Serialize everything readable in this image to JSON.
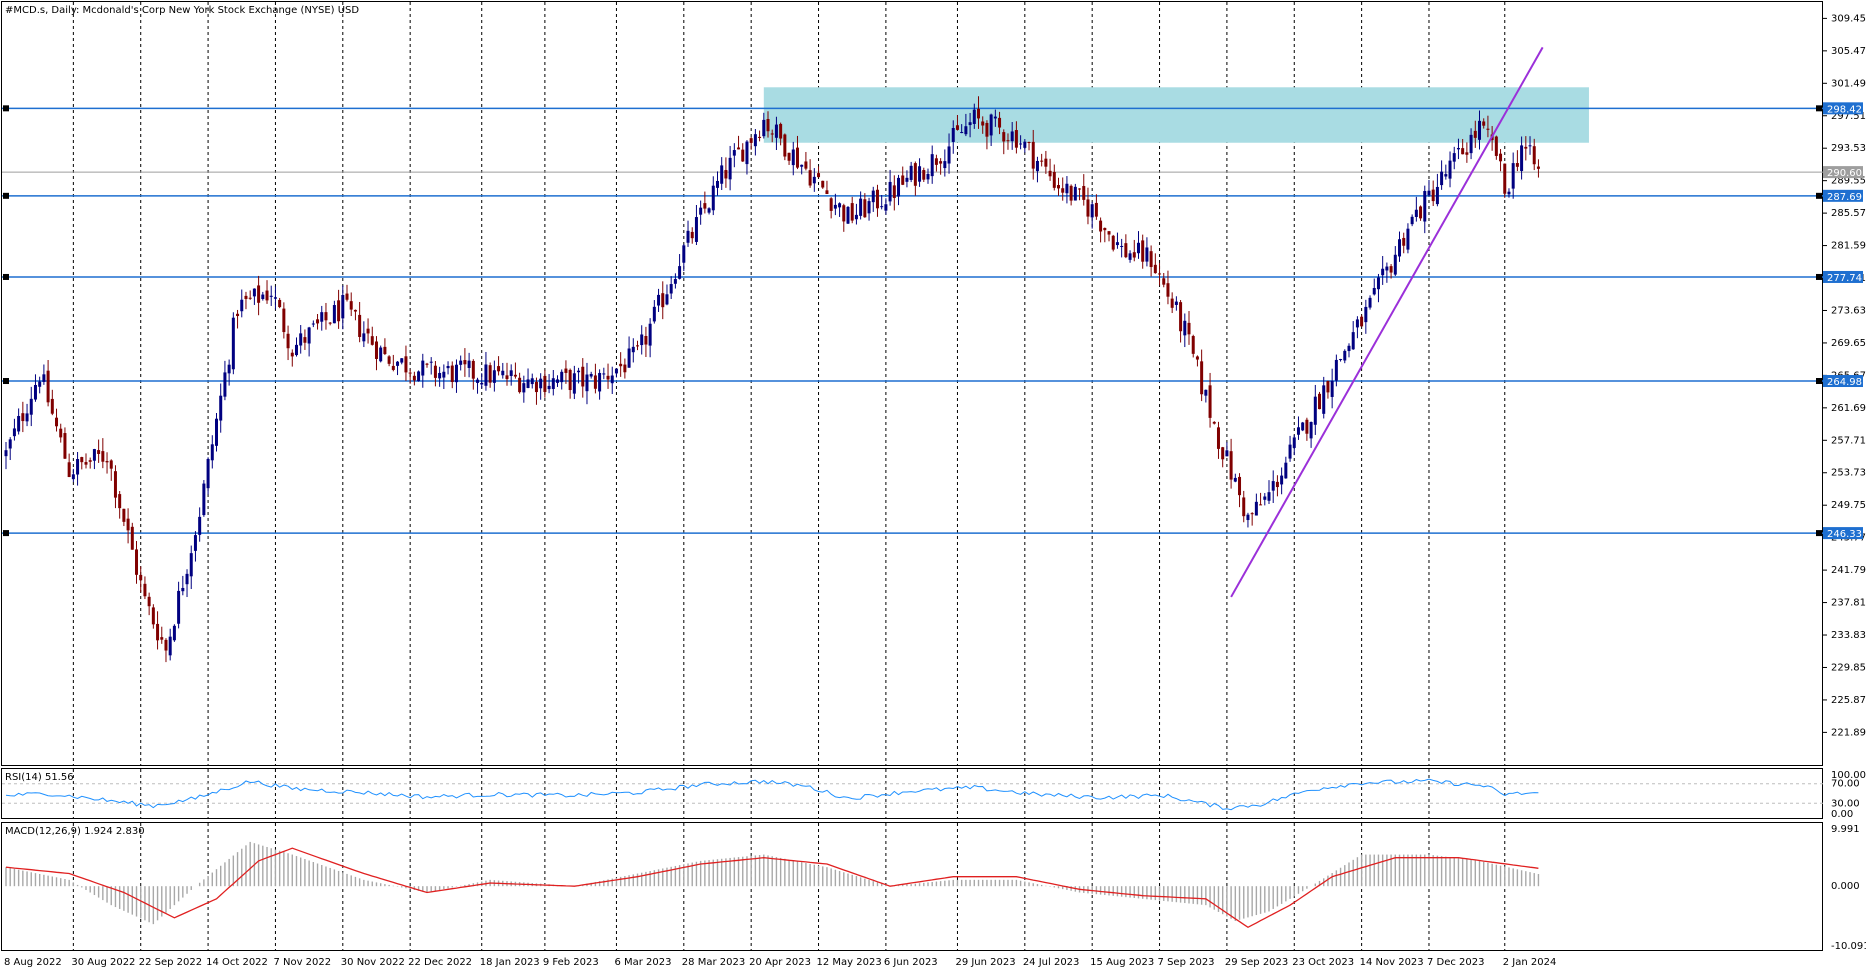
{
  "title": "#MCD.s, Daily:  Mcdonald's Corp New York Stock Exchange (NYSE) USD",
  "colors": {
    "background": "#ffffff",
    "candle_up": "#000080",
    "candle_down": "#800000",
    "level_line": "#1e6fd0",
    "level_label_bg": "#1e6fd0",
    "resistance_zone": "#a9dce3",
    "trendline": "#9b30d9",
    "current_price_line": "#9e9e9e",
    "current_price_label_bg": "#9e9e9e",
    "rsi_line": "#1e90ff",
    "macd_hist": "#a8a8a8",
    "macd_signal": "#e02020",
    "grid": "#000000"
  },
  "chart_data": [
    {
      "type": "candlestick",
      "panel": "price",
      "symbol": "#MCD.s",
      "timeframe": "Daily",
      "ylim": [
        217.89,
        311.46
      ],
      "y_ticks": [
        "309.45",
        "305.47",
        "301.49",
        "297.51",
        "293.53",
        "289.55",
        "285.57",
        "281.59",
        "277.61",
        "273.63",
        "269.65",
        "265.67",
        "261.69",
        "257.71",
        "253.73",
        "249.75",
        "245.77",
        "241.79",
        "237.81",
        "233.83",
        "229.85",
        "225.87",
        "221.89"
      ],
      "x_tick_labels": [
        "8 Aug 2022",
        "30 Aug 2022",
        "22 Sep 2022",
        "14 Oct 2022",
        "7 Nov 2022",
        "30 Nov 2022",
        "22 Dec 2022",
        "18 Jan 2023",
        "9 Feb 2023",
        "6 Mar 2023",
        "28 Mar 2023",
        "20 Apr 2023",
        "12 May 2023",
        "6 Jun 2023",
        "29 Jun 2023",
        "24 Jul 2023",
        "15 Aug 2023",
        "7 Sep 2023",
        "29 Sep 2023",
        "23 Oct 2023",
        "14 Nov 2023",
        "7 Dec 2023",
        "2 Jan 2024"
      ],
      "x_tick_bars": [
        0,
        16,
        32,
        48,
        64,
        80,
        96,
        113,
        128,
        145,
        161,
        177,
        193,
        209,
        226,
        242,
        258,
        274,
        290,
        306,
        322,
        338,
        356
      ],
      "bar_count": 365,
      "close_anchors": [
        [
          0,
          256
        ],
        [
          8,
          266
        ],
        [
          15,
          254
        ],
        [
          24,
          256
        ],
        [
          33,
          238
        ],
        [
          38,
          232
        ],
        [
          46,
          249
        ],
        [
          55,
          274
        ],
        [
          63,
          276
        ],
        [
          68,
          269
        ],
        [
          80,
          274
        ],
        [
          90,
          268
        ],
        [
          100,
          266
        ],
        [
          110,
          266
        ],
        [
          125,
          265
        ],
        [
          140,
          265
        ],
        [
          150,
          268
        ],
        [
          160,
          280
        ],
        [
          170,
          290
        ],
        [
          180,
          297
        ],
        [
          195,
          288
        ],
        [
          200,
          285
        ],
        [
          210,
          288
        ],
        [
          220,
          292
        ],
        [
          230,
          297
        ],
        [
          240,
          295
        ],
        [
          250,
          289
        ],
        [
          258,
          286
        ],
        [
          265,
          281
        ],
        [
          272,
          280
        ],
        [
          280,
          271
        ],
        [
          288,
          258
        ],
        [
          295,
          248
        ],
        [
          300,
          251
        ],
        [
          308,
          259
        ],
        [
          316,
          267
        ],
        [
          325,
          275
        ],
        [
          333,
          284
        ],
        [
          340,
          289
        ],
        [
          350,
          296
        ],
        [
          354,
          293
        ],
        [
          356,
          288
        ],
        [
          360,
          294
        ],
        [
          364,
          290.6
        ]
      ],
      "levels": [
        {
          "value": 298.42,
          "label": "298.42"
        },
        {
          "value": 287.69,
          "label": "287.69"
        },
        {
          "value": 277.74,
          "label": "277.74"
        },
        {
          "value": 264.98,
          "label": "264.98"
        },
        {
          "value": 246.33,
          "label": "246.33"
        }
      ],
      "current_price": {
        "value": 290.6,
        "label": "290.60"
      },
      "resistance_zone": {
        "y_low": 294.2,
        "y_high": 301.0,
        "x_start_bar": 180,
        "x_end_bar": 376
      },
      "trendline": {
        "start": {
          "bar": 291,
          "price": 238.5
        },
        "end": {
          "bar": 365,
          "price": 305.9
        }
      }
    },
    {
      "type": "line",
      "panel": "rsi",
      "label": "RSI(14) 51.56",
      "ylim": [
        0,
        100
      ],
      "y_ticks": [
        "100.00",
        "70.00",
        "30.00",
        "0.00"
      ],
      "guide_levels": [
        70,
        30
      ],
      "value_anchors": [
        [
          0,
          46
        ],
        [
          10,
          50
        ],
        [
          20,
          40
        ],
        [
          35,
          25
        ],
        [
          45,
          40
        ],
        [
          58,
          75
        ],
        [
          68,
          60
        ],
        [
          85,
          52
        ],
        [
          100,
          43
        ],
        [
          115,
          48
        ],
        [
          135,
          46
        ],
        [
          150,
          52
        ],
        [
          165,
          68
        ],
        [
          180,
          75
        ],
        [
          190,
          65
        ],
        [
          200,
          40
        ],
        [
          215,
          55
        ],
        [
          230,
          62
        ],
        [
          245,
          48
        ],
        [
          260,
          42
        ],
        [
          275,
          46
        ],
        [
          290,
          20
        ],
        [
          298,
          28
        ],
        [
          310,
          58
        ],
        [
          322,
          72
        ],
        [
          338,
          75
        ],
        [
          345,
          70
        ],
        [
          352,
          65
        ],
        [
          355,
          48
        ],
        [
          364,
          51.56
        ]
      ]
    },
    {
      "type": "histogram+line",
      "panel": "macd",
      "label": "MACD(12,26,9) 1.924 2.830",
      "ylim": [
        -10.091,
        9.991
      ],
      "y_ticks": [
        "9.991",
        "0.000",
        "-10.091"
      ],
      "hist_anchors": [
        [
          0,
          3
        ],
        [
          15,
          1
        ],
        [
          25,
          -3
        ],
        [
          35,
          -6
        ],
        [
          45,
          0
        ],
        [
          58,
          7
        ],
        [
          68,
          5
        ],
        [
          85,
          1
        ],
        [
          100,
          -1
        ],
        [
          115,
          1
        ],
        [
          135,
          0
        ],
        [
          150,
          2
        ],
        [
          165,
          4
        ],
        [
          180,
          5
        ],
        [
          195,
          3
        ],
        [
          210,
          0
        ],
        [
          225,
          1
        ],
        [
          240,
          1
        ],
        [
          255,
          -1
        ],
        [
          270,
          -2
        ],
        [
          285,
          -3
        ],
        [
          292,
          -5.5
        ],
        [
          300,
          -4
        ],
        [
          310,
          0
        ],
        [
          322,
          5
        ],
        [
          338,
          5
        ],
        [
          350,
          4
        ],
        [
          364,
          1.924
        ]
      ],
      "signal_anchors": [
        [
          0,
          3
        ],
        [
          15,
          2
        ],
        [
          28,
          -1
        ],
        [
          40,
          -5
        ],
        [
          50,
          -2
        ],
        [
          60,
          4
        ],
        [
          68,
          6
        ],
        [
          85,
          2
        ],
        [
          100,
          -1
        ],
        [
          115,
          0.5
        ],
        [
          135,
          0
        ],
        [
          150,
          1.5
        ],
        [
          165,
          3.5
        ],
        [
          180,
          4.5
        ],
        [
          195,
          3.5
        ],
        [
          210,
          0
        ],
        [
          225,
          1.5
        ],
        [
          240,
          1.5
        ],
        [
          255,
          -0.5
        ],
        [
          270,
          -1.5
        ],
        [
          285,
          -2
        ],
        [
          295,
          -6.5
        ],
        [
          305,
          -3
        ],
        [
          315,
          1.5
        ],
        [
          330,
          4.5
        ],
        [
          345,
          4.5
        ],
        [
          364,
          2.83
        ]
      ]
    }
  ]
}
